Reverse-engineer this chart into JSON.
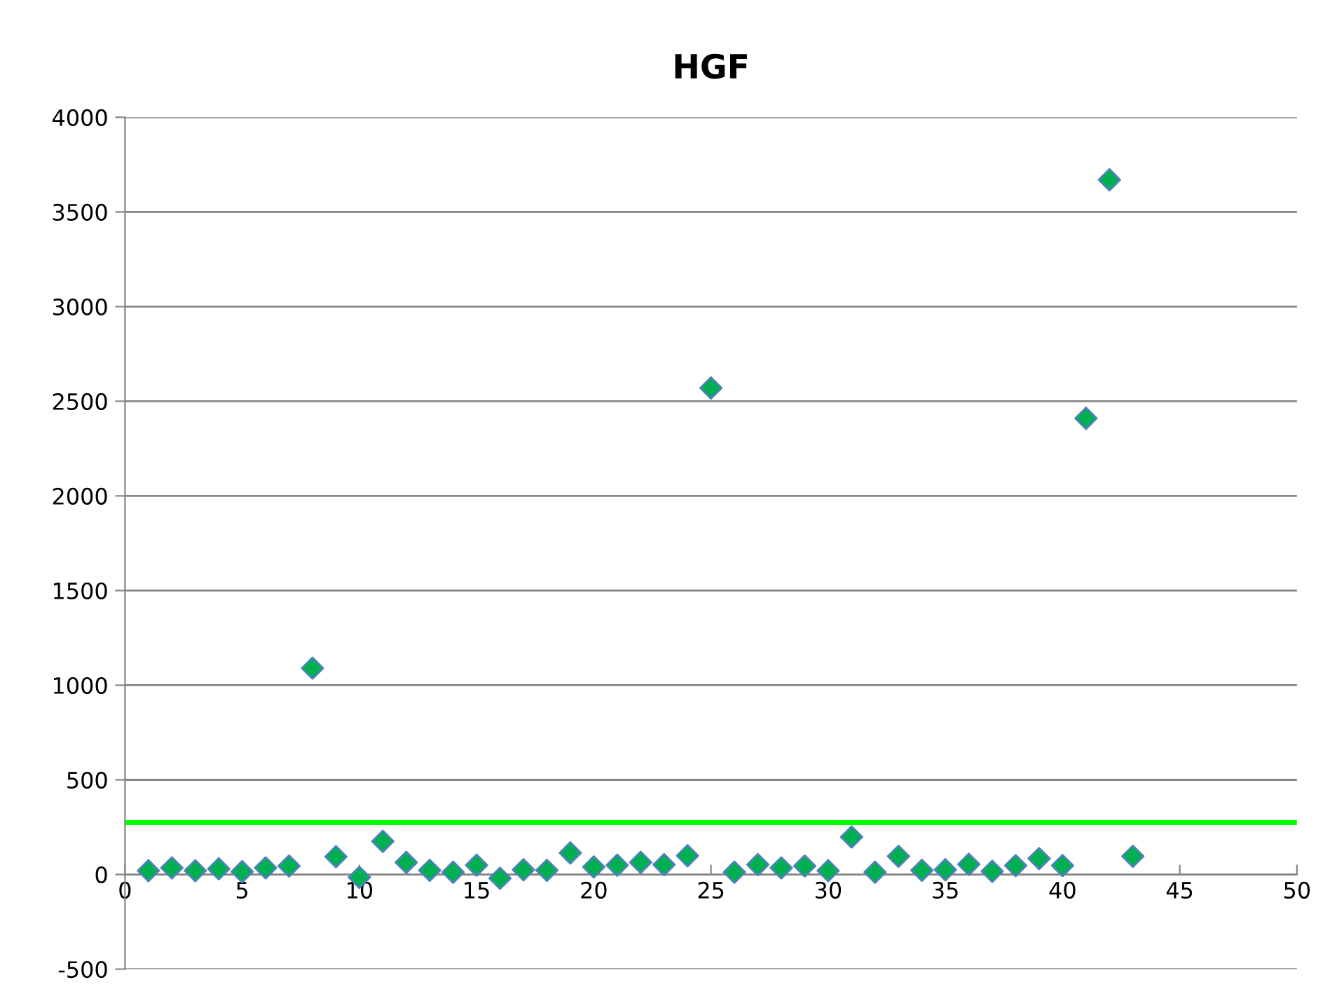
{
  "chart_data": {
    "type": "scatter",
    "title": "HGF",
    "x": [
      1,
      2,
      3,
      4,
      5,
      6,
      7,
      8,
      9,
      10,
      11,
      12,
      13,
      14,
      15,
      16,
      17,
      18,
      19,
      20,
      21,
      22,
      23,
      24,
      25,
      26,
      27,
      28,
      29,
      30,
      31,
      32,
      33,
      34,
      35,
      36,
      37,
      38,
      39,
      40,
      41,
      42,
      43
    ],
    "series": [
      {
        "color": "#00b050",
        "values": [
          20,
          35,
          20,
          30,
          15,
          35,
          45,
          1090,
          94,
          -15,
          175,
          64,
          22,
          12,
          49,
          -20,
          25,
          22,
          114,
          40,
          49,
          64,
          52,
          99,
          2570,
          12,
          52,
          35,
          45,
          20,
          198,
          12,
          96,
          22,
          25,
          54,
          17,
          47,
          84,
          47,
          2410,
          3670,
          96
        ]
      }
    ],
    "marker": "diamond",
    "xlim": [
      0,
      50
    ],
    "xticks": [
      0,
      5,
      10,
      15,
      20,
      25,
      30,
      35,
      40,
      45,
      50
    ],
    "ylim": [
      -500,
      4000
    ],
    "yticks": [
      -500,
      0,
      500,
      1000,
      1500,
      2000,
      2500,
      3000,
      3500,
      4000
    ],
    "grid": "y",
    "legend": false,
    "ref_lines": [
      {
        "axis": "y",
        "value": 274,
        "color": "#00ff00",
        "line_style": "solid"
      }
    ]
  }
}
